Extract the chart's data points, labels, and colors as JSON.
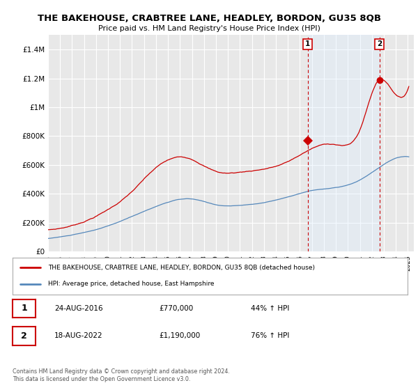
{
  "title": "THE BAKEHOUSE, CRABTREE LANE, HEADLEY, BORDON, GU35 8QB",
  "subtitle": "Price paid vs. HM Land Registry's House Price Index (HPI)",
  "ylabel_ticks": [
    "£0",
    "£200K",
    "£400K",
    "£600K",
    "£800K",
    "£1M",
    "£1.2M",
    "£1.4M"
  ],
  "ytick_values": [
    0,
    200000,
    400000,
    600000,
    800000,
    1000000,
    1200000,
    1400000
  ],
  "ylim": [
    0,
    1500000
  ],
  "xlim_start": 1995.0,
  "xlim_end": 2025.5,
  "background_color": "#ffffff",
  "plot_bg_color": "#e8e8e8",
  "grid_color": "#ffffff",
  "red_color": "#cc0000",
  "blue_color": "#5588bb",
  "shade_color": "#ddeeff",
  "marker1_x": 2016.65,
  "marker1_y": 770000,
  "marker2_x": 2022.63,
  "marker2_y": 1190000,
  "marker1_label": "1",
  "marker2_label": "2",
  "annotation1_date": "24-AUG-2016",
  "annotation1_price": "£770,000",
  "annotation1_hpi": "44% ↑ HPI",
  "annotation2_date": "18-AUG-2022",
  "annotation2_price": "£1,190,000",
  "annotation2_hpi": "76% ↑ HPI",
  "legend_line1": "THE BAKEHOUSE, CRABTREE LANE, HEADLEY, BORDON, GU35 8QB (detached house)",
  "legend_line2": "HPI: Average price, detached house, East Hampshire",
  "footnote": "Contains HM Land Registry data © Crown copyright and database right 2024.\nThis data is licensed under the Open Government Licence v3.0."
}
